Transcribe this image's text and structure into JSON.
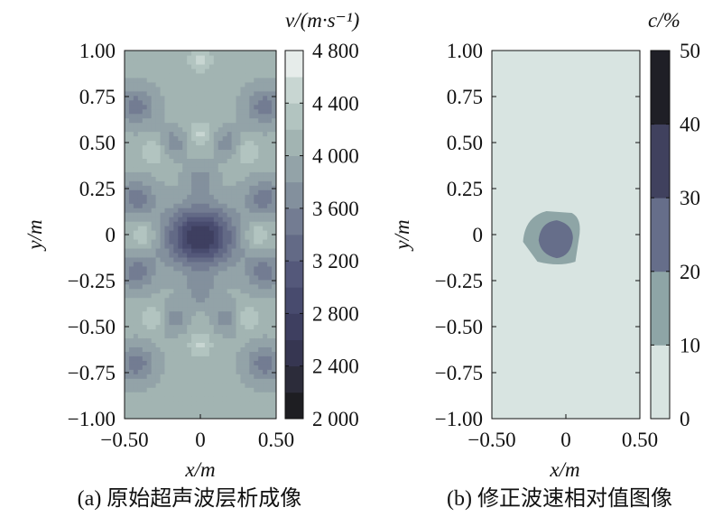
{
  "chart_data": [
    {
      "type": "heatmap",
      "panel": "a",
      "caption": "(a) 原始超声波层析成像",
      "xlabel": "x/m",
      "ylabel": "y/m",
      "xlim": [
        -0.5,
        0.5
      ],
      "ylim": [
        -1.0,
        1.0
      ],
      "xticks": [
        "−0.50",
        "0",
        "0.50"
      ],
      "yticks": [
        "1.00",
        "0.75",
        "0.50",
        "0.25",
        "0",
        "−0.25",
        "−0.50",
        "−0.75",
        "−1.00"
      ],
      "colorbar": {
        "title": "v/(m·s⁻¹)",
        "ticks": [
          "4 800",
          "4 400",
          "4 000",
          "3 600",
          "3 200",
          "2 800",
          "2 400",
          "2 000"
        ],
        "range": [
          2000,
          4800
        ],
        "levels": 14,
        "colors": [
          "#1e1e22",
          "#2c2c3a",
          "#363651",
          "#3e3f60",
          "#484b6e",
          "#54587a",
          "#636a86",
          "#737c92",
          "#83909d",
          "#93a3a8",
          "#a2b4b2",
          "#b2c4c0",
          "#c8d6d2",
          "#e6ecea"
        ]
      },
      "features": [
        {
          "desc": "low-velocity zone near center",
          "x": 0.0,
          "y": 0.0,
          "v_min": 2600
        },
        {
          "desc": "background velocity",
          "v": 4000
        }
      ]
    },
    {
      "type": "heatmap",
      "panel": "b",
      "caption": "(b) 修正波速相对值图像",
      "xlabel": "x/m",
      "ylabel": "y/m",
      "xlim": [
        -0.5,
        0.5
      ],
      "ylim": [
        -1.0,
        1.0
      ],
      "xticks": [
        "−0.50",
        "0",
        "0.50"
      ],
      "yticks": [
        "1.00",
        "0.75",
        "0.50",
        "0.25",
        "0",
        "−0.25",
        "−0.50",
        "−0.75",
        "−1.00"
      ],
      "colorbar": {
        "title": "c/%",
        "ticks": [
          "50",
          "40",
          "30",
          "20",
          "10",
          "0"
        ],
        "range": [
          0,
          50
        ],
        "levels": 5,
        "colors": [
          "#d8e4e1",
          "#8ea5a6",
          "#666e8a",
          "#40415e",
          "#1f1f26"
        ]
      },
      "features": [
        {
          "desc": "anomaly band 10–20%",
          "x": -0.07,
          "y": -0.01,
          "level": "10-20"
        },
        {
          "desc": "anomaly core 20–30%",
          "x": -0.05,
          "y": -0.02,
          "level": "20-30"
        }
      ]
    }
  ]
}
